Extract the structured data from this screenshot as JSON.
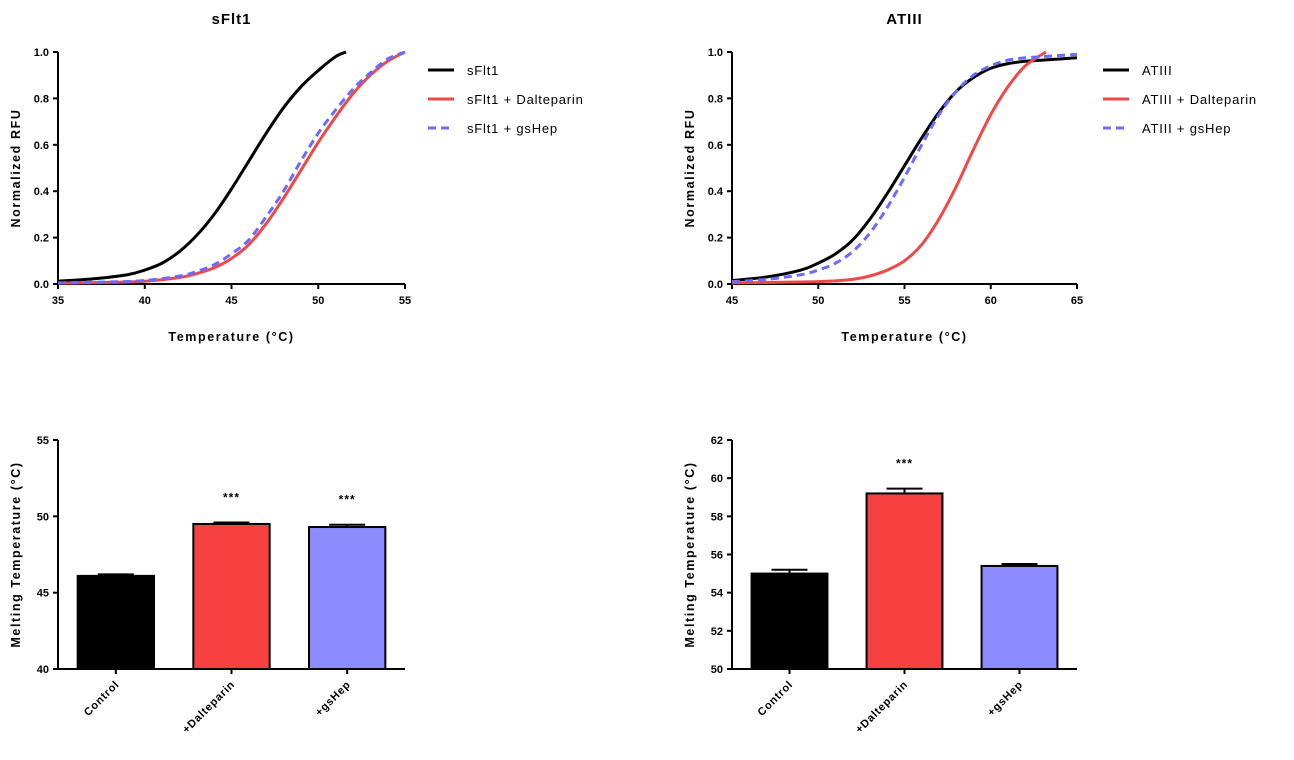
{
  "chart_data": [
    {
      "type": "line",
      "title": "sFlt1",
      "xlabel": "Temperature (°C)",
      "ylabel": "Normalized RFU",
      "xlim": [
        35,
        55
      ],
      "ylim": [
        0,
        1.0
      ],
      "xticks": [
        35,
        40,
        45,
        50,
        55
      ],
      "yticks": [
        0.0,
        0.2,
        0.4,
        0.6,
        0.8,
        1.0
      ],
      "legend_position": "right",
      "series": [
        {
          "name": "sFlt1",
          "color": "#000000",
          "dash": "solid",
          "x": [
            35,
            37,
            39,
            40,
            41,
            42,
            43,
            44,
            45,
            46,
            47,
            48,
            49,
            50,
            51,
            51.6
          ],
          "y": [
            0.012,
            0.022,
            0.04,
            0.06,
            0.09,
            0.14,
            0.21,
            0.3,
            0.41,
            0.53,
            0.65,
            0.76,
            0.85,
            0.92,
            0.98,
            1.0
          ]
        },
        {
          "name": "sFlt1 + Dalteparin",
          "color": "#f04747",
          "dash": "solid",
          "x": [
            35,
            38,
            40,
            42,
            43,
            44,
            45,
            46,
            47,
            48,
            49,
            50,
            51,
            52,
            53,
            54,
            55
          ],
          "y": [
            0.004,
            0.007,
            0.012,
            0.028,
            0.045,
            0.07,
            0.11,
            0.17,
            0.26,
            0.37,
            0.49,
            0.61,
            0.72,
            0.82,
            0.9,
            0.96,
            1.0
          ]
        },
        {
          "name": "sFlt1 + gsHep",
          "color": "#6b6bff",
          "dash": "dashed",
          "x": [
            35,
            38,
            40,
            42,
            43,
            44,
            45,
            46,
            47,
            48,
            49,
            50,
            51,
            52,
            53,
            54,
            55
          ],
          "y": [
            0.005,
            0.009,
            0.015,
            0.034,
            0.054,
            0.083,
            0.13,
            0.19,
            0.29,
            0.4,
            0.53,
            0.65,
            0.75,
            0.84,
            0.91,
            0.97,
            1.0
          ]
        }
      ]
    },
    {
      "type": "line",
      "title": "ATIII",
      "xlabel": "Temperature (°C)",
      "ylabel": "Normalized RFU",
      "xlim": [
        45,
        65
      ],
      "ylim": [
        0,
        1.0
      ],
      "xticks": [
        45,
        50,
        55,
        60,
        65
      ],
      "yticks": [
        0.0,
        0.2,
        0.4,
        0.6,
        0.8,
        1.0
      ],
      "legend_position": "right",
      "series": [
        {
          "name": "ATIII",
          "color": "#000000",
          "dash": "solid",
          "x": [
            45,
            47,
            49,
            50,
            51,
            52,
            53,
            54,
            55,
            56,
            57,
            58,
            59,
            60,
            61,
            62,
            63,
            64,
            65
          ],
          "y": [
            0.015,
            0.03,
            0.06,
            0.09,
            0.13,
            0.19,
            0.28,
            0.39,
            0.51,
            0.63,
            0.74,
            0.83,
            0.89,
            0.93,
            0.95,
            0.96,
            0.965,
            0.97,
            0.975
          ]
        },
        {
          "name": "ATIII + Dalteparin",
          "color": "#f04747",
          "dash": "solid",
          "x": [
            45,
            50,
            52,
            53,
            54,
            55,
            56,
            57,
            58,
            59,
            60,
            61,
            62,
            63.2
          ],
          "y": [
            0.005,
            0.01,
            0.02,
            0.035,
            0.06,
            0.1,
            0.17,
            0.28,
            0.42,
            0.58,
            0.73,
            0.85,
            0.94,
            1.0
          ]
        },
        {
          "name": "ATIII + gsHep",
          "color": "#6b6bff",
          "dash": "dashed",
          "x": [
            45,
            47,
            49,
            50,
            51,
            52,
            53,
            54,
            55,
            56,
            57,
            58,
            59,
            60,
            61,
            62,
            63,
            64,
            65
          ],
          "y": [
            0.01,
            0.02,
            0.04,
            0.06,
            0.09,
            0.14,
            0.22,
            0.33,
            0.46,
            0.6,
            0.73,
            0.83,
            0.9,
            0.94,
            0.965,
            0.975,
            0.98,
            0.985,
            0.99
          ]
        }
      ]
    },
    {
      "type": "bar",
      "title": "",
      "xlabel": "",
      "ylabel": "Melting Temperature (°C)",
      "ylim": [
        40,
        55
      ],
      "yticks": [
        40,
        45,
        50,
        55
      ],
      "categories": [
        "Control",
        "+Dalteparin",
        "+gsHep"
      ],
      "values": [
        46.1,
        49.5,
        49.3
      ],
      "errors": [
        0.1,
        0.1,
        0.15
      ],
      "colors": [
        "#000000",
        "#f74040",
        "#8b8bff"
      ],
      "annotations": [
        "",
        "***",
        "***"
      ]
    },
    {
      "type": "bar",
      "title": "",
      "xlabel": "",
      "ylabel": "Melting Temperature (°C)",
      "ylim": [
        50,
        62
      ],
      "yticks": [
        50,
        52,
        54,
        56,
        58,
        60,
        62
      ],
      "categories": [
        "Control",
        "+Dalteparin",
        "+gsHep"
      ],
      "values": [
        55.0,
        59.2,
        55.4
      ],
      "errors": [
        0.2,
        0.25,
        0.1
      ],
      "colors": [
        "#000000",
        "#f74040",
        "#8b8bff"
      ],
      "annotations": [
        "",
        "***",
        ""
      ]
    }
  ]
}
